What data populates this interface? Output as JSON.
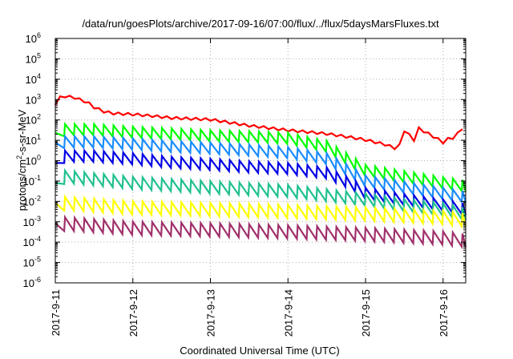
{
  "chart_data": {
    "type": "line",
    "title": "/data/run/goesPlots/archive/2017-09-16/07:00/flux/../flux/5daysMarsFluxes.txt",
    "xlabel": "Coordinated Universal Time (UTC)",
    "ylabel": "protons/cm2-s-sr-MeV",
    "ylabel_parts": {
      "pre": "protons/cm",
      "sup": "2",
      "post": "-s-sr-MeV"
    },
    "yscale": "log",
    "ylim": [
      1e-06,
      1000000.0
    ],
    "xlim": [
      "2017-09-11 00:00",
      "2017-09-16 07:00"
    ],
    "x_ticks": [
      "2017-9-11",
      "2017-9-12",
      "2017-9-13",
      "2017-9-14",
      "2017-9-15",
      "2017-9-16"
    ],
    "y_ticks": [
      {
        "base": "10",
        "exp": "-6"
      },
      {
        "base": "10",
        "exp": "-5"
      },
      {
        "base": "10",
        "exp": "-4"
      },
      {
        "base": "10",
        "exp": "-3"
      },
      {
        "base": "10",
        "exp": "-2"
      },
      {
        "base": "10",
        "exp": "-1"
      },
      {
        "base": "10",
        "exp": "0"
      },
      {
        "base": "10",
        "exp": "1"
      },
      {
        "base": "10",
        "exp": "2"
      },
      {
        "base": "10",
        "exp": "3"
      },
      {
        "base": "10",
        "exp": "4"
      },
      {
        "base": "10",
        "exp": "5"
      },
      {
        "base": "10",
        "exp": "6"
      }
    ],
    "grid": true,
    "legend": "none",
    "series": [
      {
        "color": "#ff0000",
        "x": [
          "2017-09-11 00:00",
          "2017-09-11 02:00",
          "2017-09-11 04:00",
          "2017-09-11 06:00",
          "2017-09-11 08:00",
          "2017-09-11 10:00",
          "2017-09-11 12:00",
          "2017-09-11 15:00",
          "2017-09-11 18:00",
          "2017-09-12 00:00",
          "2017-09-12 06:00",
          "2017-09-12 12:00",
          "2017-09-13 00:00",
          "2017-09-13 12:00",
          "2017-09-14 00:00",
          "2017-09-14 12:00",
          "2017-09-14 20:00",
          "2017-09-15 00:00",
          "2017-09-15 06:00",
          "2017-09-15 09:00",
          "2017-09-15 10:00",
          "2017-09-15 12:00",
          "2017-09-15 15:00",
          "2017-09-15 16:00",
          "2017-09-15 22:00",
          "2017-09-16 01:00",
          "2017-09-16 02:00",
          "2017-09-16 04:00",
          "2017-09-16 05:00",
          "2017-09-16 07:00"
        ],
        "values": [
          600,
          1500,
          1300,
          1200,
          900,
          700,
          400,
          250,
          200,
          180,
          150,
          120,
          100,
          50,
          30,
          20,
          13,
          10,
          6,
          4,
          3,
          30,
          10,
          40,
          12,
          6,
          20,
          8,
          50,
          30
        ]
      },
      {
        "color": "#00ff00",
        "x": [
          "2017-09-11 00:00",
          "2017-09-11 03:00",
          "2017-09-11 12:00",
          "2017-09-12 00:00",
          "2017-09-12 12:00",
          "2017-09-13 00:00",
          "2017-09-13 12:00",
          "2017-09-14 00:00",
          "2017-09-14 12:00",
          "2017-09-14 20:00",
          "2017-09-15 00:00",
          "2017-09-15 12:00",
          "2017-09-16 00:00",
          "2017-09-16 07:00"
        ],
        "values": [
          15,
          40,
          40,
          30,
          25,
          20,
          18,
          15,
          6,
          1,
          0.4,
          0.2,
          0.1,
          0.07
        ]
      },
      {
        "color": "#1a8cff",
        "x": [
          "2017-09-11 00:00",
          "2017-09-11 03:00",
          "2017-09-11 12:00",
          "2017-09-12 00:00",
          "2017-09-12 12:00",
          "2017-09-13 00:00",
          "2017-09-13 12:00",
          "2017-09-14 00:00",
          "2017-09-14 12:00",
          "2017-09-14 20:00",
          "2017-09-15 00:00",
          "2017-09-15 12:00",
          "2017-09-16 00:00",
          "2017-09-16 07:00"
        ],
        "values": [
          5,
          10,
          10,
          8,
          6,
          5,
          4,
          3,
          1.5,
          0.3,
          0.12,
          0.06,
          0.03,
          0.02
        ]
      },
      {
        "color": "#0000e6",
        "x": [
          "2017-09-11 00:00",
          "2017-09-11 03:00",
          "2017-09-11 12:00",
          "2017-09-12 00:00",
          "2017-09-12 12:00",
          "2017-09-13 00:00",
          "2017-09-13 12:00",
          "2017-09-14 00:00",
          "2017-09-14 12:00",
          "2017-09-14 20:00",
          "2017-09-15 00:00",
          "2017-09-15 12:00",
          "2017-09-16 00:00",
          "2017-09-16 07:00"
        ],
        "values": [
          0.5,
          2,
          2,
          1.5,
          1,
          0.8,
          0.6,
          0.5,
          0.3,
          0.08,
          0.03,
          0.015,
          0.008,
          0.005
        ]
      },
      {
        "color": "#20c090",
        "x": [
          "2017-09-11 00:00",
          "2017-09-11 03:00",
          "2017-09-11 12:00",
          "2017-09-12 00:00",
          "2017-09-13 00:00",
          "2017-09-14 00:00",
          "2017-09-15 00:00",
          "2017-09-15 12:00",
          "2017-09-16 00:00",
          "2017-09-16 07:00"
        ],
        "values": [
          0.05,
          0.2,
          0.15,
          0.1,
          0.06,
          0.04,
          0.015,
          0.008,
          0.005,
          0.003
        ]
      },
      {
        "color": "#ffff00",
        "x": [
          "2017-09-11 00:00",
          "2017-09-11 03:00",
          "2017-09-12 00:00",
          "2017-09-13 00:00",
          "2017-09-14 00:00",
          "2017-09-15 00:00",
          "2017-09-16 00:00",
          "2017-09-16 07:00"
        ],
        "values": [
          0.005,
          0.01,
          0.006,
          0.005,
          0.004,
          0.003,
          0.002,
          0.0015
        ]
      },
      {
        "color": "#a0306a",
        "x": [
          "2017-09-11 00:00",
          "2017-09-11 03:00",
          "2017-09-12 00:00",
          "2017-09-13 00:00",
          "2017-09-14 00:00",
          "2017-09-15 00:00",
          "2017-09-16 00:00",
          "2017-09-16 07:00"
        ],
        "values": [
          0.0005,
          0.001,
          0.0006,
          0.0005,
          0.0004,
          0.0003,
          0.0002,
          0.00015
        ]
      }
    ]
  }
}
